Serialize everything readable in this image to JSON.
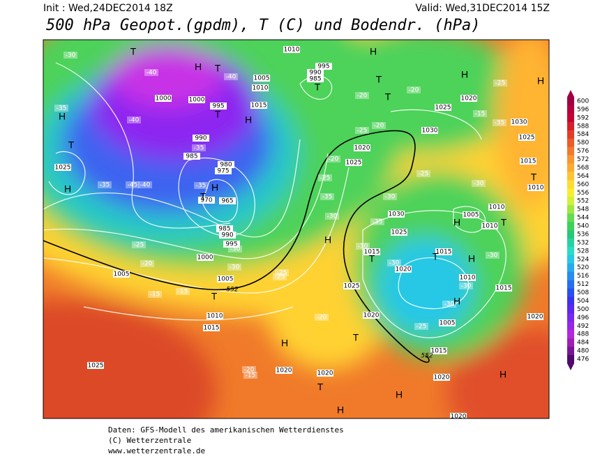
{
  "header": {
    "init": "Init : Wed,24DEC2014 18Z",
    "valid": "Valid: Wed,31DEC2014 15Z",
    "title": "500 hPa Geopot.(gpdm), T (C) und Bodendr. (hPa)"
  },
  "colorbar": {
    "levels": [
      600,
      596,
      592,
      588,
      584,
      580,
      576,
      572,
      568,
      564,
      560,
      556,
      552,
      548,
      544,
      540,
      536,
      532,
      528,
      524,
      520,
      516,
      512,
      508,
      504,
      500,
      496,
      492,
      488,
      484,
      480,
      476
    ],
    "colors": [
      "#9e0042",
      "#b4003c",
      "#c80032",
      "#d81e28",
      "#e43c28",
      "#ee5a28",
      "#f4782d",
      "#f99632",
      "#ffaa32",
      "#ffc432",
      "#ffdc32",
      "#f5ef32",
      "#d2f03c",
      "#a0e646",
      "#64dc50",
      "#3cd25a",
      "#28c878",
      "#28d2a0",
      "#28dcc8",
      "#28c8e6",
      "#28aaf0",
      "#288cf0",
      "#286ef0",
      "#2850f0",
      "#3c32f0",
      "#5a28f0",
      "#7828f0",
      "#9628e6",
      "#b428dc",
      "#a01eb4",
      "#781496",
      "#500a6e"
    ]
  },
  "map": {
    "pressure_labels": [
      "1010",
      "995",
      "990",
      "985",
      "1005",
      "1010",
      "1000",
      "1000",
      "995",
      "1015",
      "990",
      "985",
      "980",
      "975",
      "970",
      "965",
      "985",
      "990",
      "995",
      "1000",
      "1005",
      "1005",
      "1010",
      "1015",
      "1025",
      "1025",
      "1020",
      "1025",
      "1030",
      "1025",
      "1020",
      "1030",
      "1025",
      "1015",
      "1010",
      "1030",
      "1025",
      "1015",
      "1020",
      "1015",
      "1005",
      "1010",
      "1010",
      "1010",
      "1015",
      "1005",
      "1015",
      "1020",
      "1020",
      "1020",
      "1020",
      "1025",
      "1020",
      "1020"
    ],
    "temp_labels": [
      "-30",
      "-40",
      "-40",
      "-35",
      "-40",
      "-45",
      "-35",
      "-35",
      "-40",
      "-35",
      "-25",
      "-20",
      "-15",
      "-15",
      "-30",
      "-30",
      "-25",
      "-25",
      "-35",
      "-30",
      "-25",
      "-20",
      "-20",
      "-30",
      "-30",
      "-25",
      "-35",
      "-30",
      "-30",
      "-20",
      "-20",
      "-25",
      "-15",
      "-35",
      "-30",
      "-30",
      "-25",
      "-20",
      "-15",
      "-20",
      "-25",
      "-30"
    ],
    "contour_labels": [
      "552",
      "552"
    ],
    "centers": [
      "T",
      "H",
      "T",
      "T",
      "H",
      "T",
      "H",
      "T",
      "T",
      "H",
      "T",
      "H",
      "H",
      "H",
      "T",
      "T",
      "T",
      "H",
      "H",
      "T",
      "T",
      "H",
      "H",
      "T",
      "H",
      "T",
      "H",
      "T",
      "H",
      "H",
      "H"
    ]
  },
  "footer": [
    "Daten: GFS-Modell des amerikanischen Wetterdienstes",
    "(C) Wetterzentrale",
    "www.wetterzentrale.de"
  ]
}
